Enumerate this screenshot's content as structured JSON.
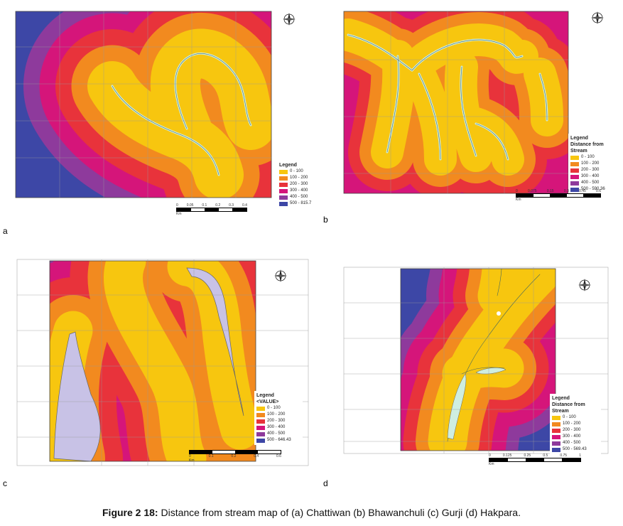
{
  "colors": {
    "c1": "#f7c60f",
    "c2": "#f28a1f",
    "c3": "#e8333b",
    "c4": "#d5157a",
    "c5": "#8e3a9c",
    "c6": "#3d47a6",
    "stream": "#cfeee0"
  },
  "panels": [
    {
      "letter": "a",
      "legend": {
        "title": "Legend",
        "subtitle": "",
        "items": [
          "0 - 100",
          "100 - 200",
          "200 - 300",
          "300 - 400",
          "400 - 500",
          "500 - 815.7"
        ]
      },
      "scale": [
        "0",
        "0.05",
        "0.1",
        "0.2",
        "0.3",
        "0.4"
      ],
      "scale_unit": "Km"
    },
    {
      "letter": "b",
      "legend": {
        "title": "Legend",
        "subtitle": "Distance from Stream",
        "items": [
          "0 - 100",
          "100 - 200",
          "200 - 300",
          "300 - 400",
          "400 - 500",
          "500 - 590.36"
        ]
      },
      "scale": [
        "0",
        "0.075",
        "0.15",
        "0.3",
        "0.45",
        "0.6"
      ],
      "scale_unit": "Km"
    },
    {
      "letter": "c",
      "legend": {
        "title": "Legend",
        "subtitle": "<VALUE>",
        "items": [
          "0 - 100",
          "100 - 200",
          "200 - 300",
          "300 - 400",
          "400 - 500",
          "500 - 646.43"
        ]
      },
      "scale": [
        "0",
        "0.1",
        "0.2",
        "0.4",
        "0.6"
      ],
      "scale_unit": "Km"
    },
    {
      "letter": "d",
      "legend": {
        "title": "Legend",
        "subtitle": "Distance from Stream",
        "items": [
          "0 - 100",
          "100 - 200",
          "200 - 300",
          "300 - 400",
          "400 - 500",
          "500 - 569.43"
        ]
      },
      "scale": [
        "0",
        "0.125",
        "0.25",
        "0.5",
        "0.75",
        "1"
      ],
      "scale_unit": "Km"
    }
  ],
  "caption": {
    "label": "Figure 2 18:",
    "text": " Distance from stream map of (a) Chattiwan (b) Bhawanchuli (c) Gurji (d) Hakpara."
  }
}
